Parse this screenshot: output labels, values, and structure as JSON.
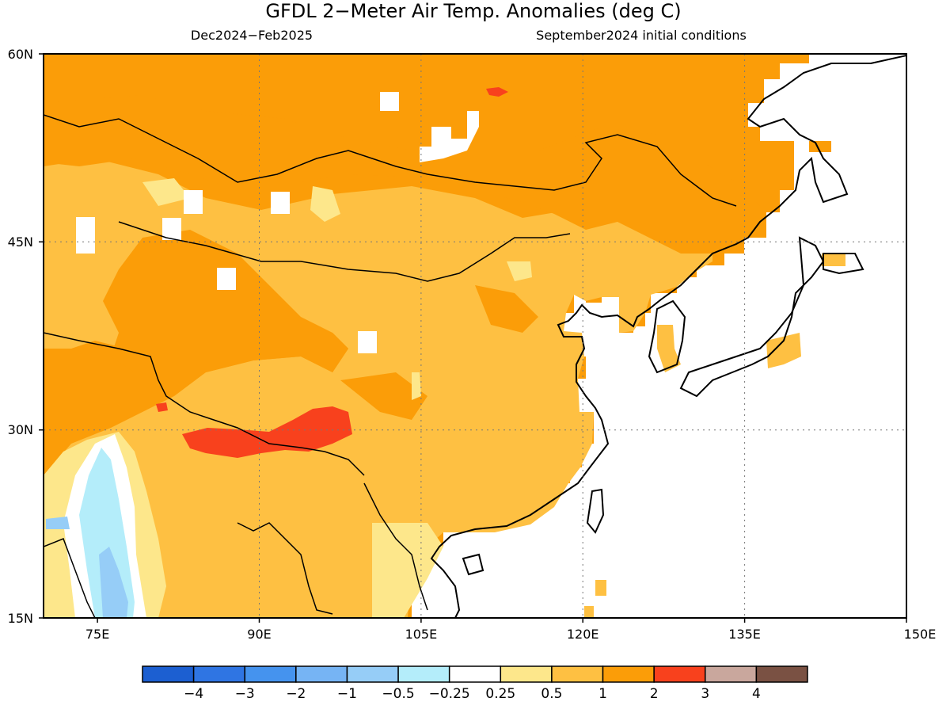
{
  "title": "GFDL 2−Meter Air Temp. Anomalies (deg C)",
  "subtitle_left": "Dec2024−Feb2025",
  "subtitle_right": "September2024 initial conditions",
  "map": {
    "lon_range": [
      70,
      150
    ],
    "lat_range": [
      15,
      60
    ],
    "lon_ticks": [
      "75E",
      "90E",
      "105E",
      "120E",
      "135E",
      "150E"
    ],
    "lat_ticks": [
      "15N",
      "30N",
      "45N",
      "60N"
    ],
    "gridlines": true,
    "regions": {
      "background_anomaly": "1 to 2",
      "tibet_max": "2 to 3",
      "india_west_min": "-1 to -0.25"
    }
  },
  "colorbar": {
    "colors": [
      "#1c5fd1",
      "#2f75e3",
      "#4593ee",
      "#76b4f4",
      "#96cdf7",
      "#b4edfa",
      "#ffffff",
      "#fde78b",
      "#fec042",
      "#fb9d08",
      "#f8411d",
      "#c9a79d",
      "#7a5143"
    ],
    "labels": [
      "−4",
      "−3",
      "−2",
      "−1",
      "−0.5",
      "−0.25",
      "0.25",
      "0.5",
      "1",
      "2",
      "3",
      "4"
    ]
  }
}
